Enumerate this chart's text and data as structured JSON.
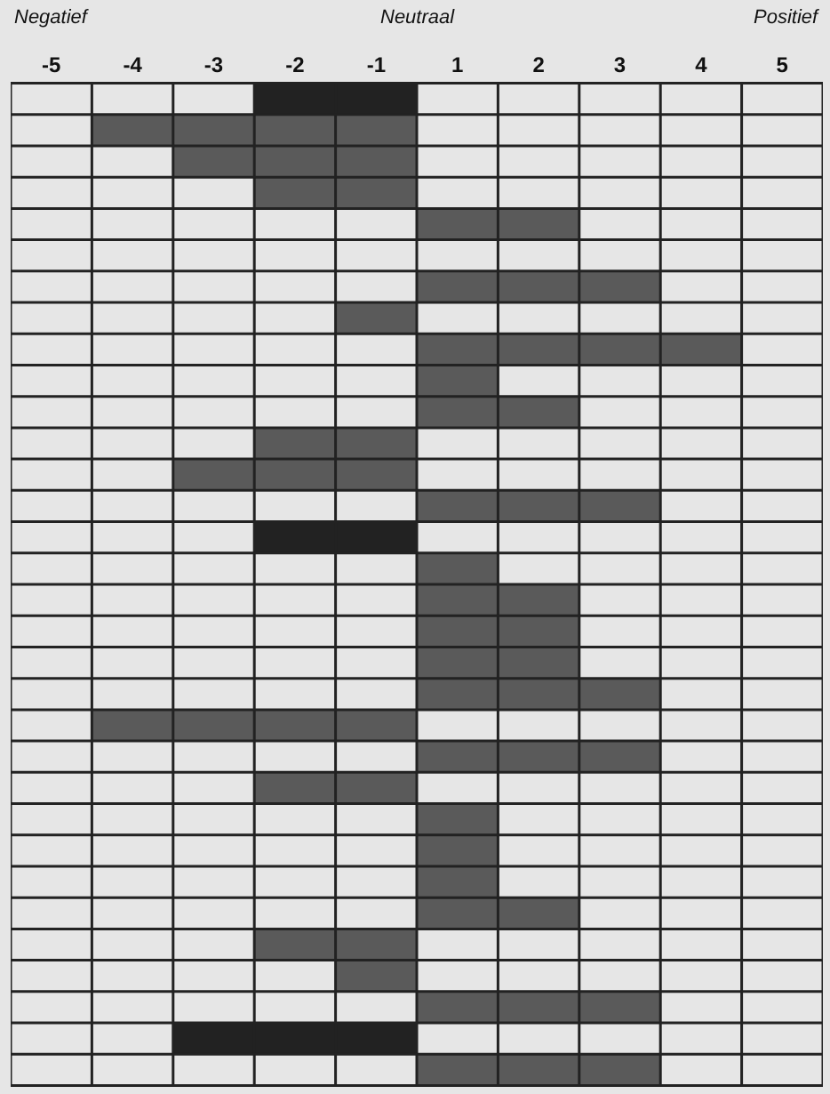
{
  "chart_data": {
    "type": "bar",
    "orientation": "horizontal",
    "grid": true,
    "tick_labels": "x",
    "annotations": [
      "Negatief",
      "Neutraal",
      "Positief"
    ],
    "categories": [
      null,
      null,
      null,
      null,
      null,
      null,
      null,
      null,
      null,
      null,
      null,
      null,
      null,
      null,
      null,
      null,
      null,
      null,
      null,
      null,
      null,
      null,
      null,
      null,
      null,
      null,
      null,
      null,
      null,
      null,
      null,
      null
    ],
    "xlim": [
      -5,
      5
    ],
    "xticks": [
      {
        "value": -4.5,
        "label": "-5"
      },
      {
        "value": -3.5,
        "label": "-4"
      },
      {
        "value": -2.5,
        "label": "-3"
      },
      {
        "value": -1.5,
        "label": "-2"
      },
      {
        "value": -0.5,
        "label": "-1"
      },
      {
        "value": 0.5,
        "label": "1"
      },
      {
        "value": 1.5,
        "label": "2"
      },
      {
        "value": 2.5,
        "label": "3"
      },
      {
        "value": 3.5,
        "label": "4"
      },
      {
        "value": 4.5,
        "label": "5"
      }
    ],
    "values": [
      -2,
      -4,
      -3,
      -2,
      2,
      null,
      3,
      -1,
      4,
      1,
      2,
      -2,
      -3,
      3,
      -2,
      1,
      2,
      2,
      2,
      3,
      -4,
      3,
      -2,
      1,
      1,
      1,
      2,
      -2,
      -1,
      3,
      -3,
      3
    ],
    "colors": [
      "#222222",
      "#5a5a5a",
      "#5a5a5a",
      "#5a5a5a",
      "#5a5a5a",
      "#5a5a5a",
      "#5a5a5a",
      "#5a5a5a",
      "#5a5a5a",
      "#5a5a5a",
      "#5a5a5a",
      "#5a5a5a",
      "#5a5a5a",
      "#5a5a5a",
      "#222222",
      "#5a5a5a",
      "#5a5a5a",
      "#5a5a5a",
      "#5a5a5a",
      "#5a5a5a",
      "#5a5a5a",
      "#5a5a5a",
      "#5a5a5a",
      "#5a5a5a",
      "#5a5a5a",
      "#5a5a5a",
      "#5a5a5a",
      "#5a5a5a",
      "#5a5a5a",
      "#5a5a5a",
      "#222222",
      "#5a5a5a"
    ]
  }
}
